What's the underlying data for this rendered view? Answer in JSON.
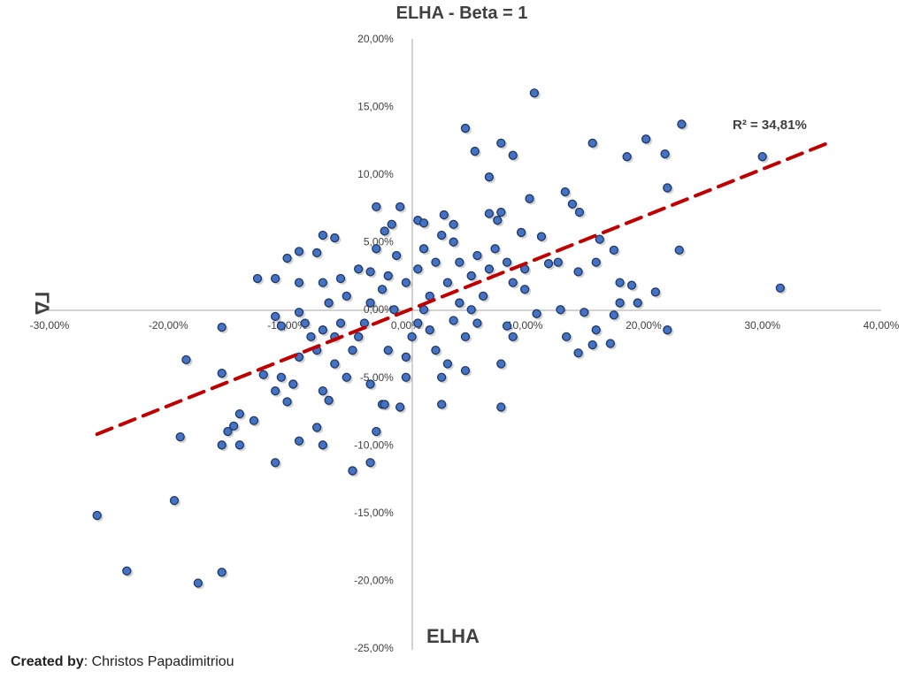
{
  "chart_data": {
    "type": "scatter",
    "title": "ELHA - Beta = 1",
    "xlabel": "ELHA",
    "ylabel": "ΓΔ",
    "xlim": [
      -0.3,
      0.4
    ],
    "ylim": [
      -0.25,
      0.2
    ],
    "x_ticks": [
      -0.3,
      -0.2,
      -0.1,
      0.0,
      0.1,
      0.2,
      0.3,
      0.4
    ],
    "x_tick_labels": [
      "-30,00%",
      "-20,00%",
      "-10,00%",
      "0,00%",
      "10,00%",
      "20,00%",
      "30,00%",
      "40,00%"
    ],
    "y_ticks": [
      0.2,
      0.15,
      0.1,
      0.05,
      0.0,
      -0.05,
      -0.1,
      -0.15,
      -0.2,
      -0.25
    ],
    "y_tick_labels": [
      "20,00%",
      "15,00%",
      "10,00%",
      "5,00%",
      "0,00%",
      "-5,00%",
      "-10,00%",
      "-15,00%",
      "-20,00%",
      "-25,00%"
    ],
    "grid": false,
    "point_color": "#4472C4",
    "point_edge_color": "#1F3864",
    "trendline": {
      "color": "#C00000",
      "style": "dashed",
      "x": [
        -0.26,
        0.355
      ],
      "y": [
        -0.092,
        0.123
      ]
    },
    "annotation": "R² = 34,81%",
    "points": [
      [
        0.108,
        0.16
      ],
      [
        0.232,
        0.137
      ],
      [
        0.05,
        0.134
      ],
      [
        0.202,
        0.126
      ],
      [
        0.157,
        0.123
      ],
      [
        0.08,
        0.123
      ],
      [
        0.218,
        0.115
      ],
      [
        0.058,
        0.117
      ],
      [
        0.09,
        0.114
      ],
      [
        0.186,
        0.113
      ],
      [
        0.3,
        0.113
      ],
      [
        0.07,
        0.098
      ],
      [
        0.22,
        0.09
      ],
      [
        0.134,
        0.087
      ],
      [
        0.104,
        0.082
      ],
      [
        0.14,
        0.078
      ],
      [
        -0.005,
        0.076
      ],
      [
        -0.025,
        0.076
      ],
      [
        0.146,
        0.072
      ],
      [
        0.08,
        0.072
      ],
      [
        0.032,
        0.07
      ],
      [
        0.07,
        0.071
      ],
      [
        0.077,
        0.066
      ],
      [
        0.01,
        0.066
      ],
      [
        0.015,
        0.064
      ],
      [
        0.04,
        0.063
      ],
      [
        -0.012,
        0.063
      ],
      [
        -0.018,
        0.058
      ],
      [
        0.097,
        0.057
      ],
      [
        0.114,
        0.054
      ],
      [
        -0.07,
        0.055
      ],
      [
        -0.06,
        0.053
      ],
      [
        0.163,
        0.052
      ],
      [
        0.23,
        0.044
      ],
      [
        0.175,
        0.044
      ],
      [
        -0.1,
        0.038
      ],
      [
        -0.09,
        0.043
      ],
      [
        -0.075,
        0.042
      ],
      [
        -0.125,
        0.023
      ],
      [
        -0.11,
        0.023
      ],
      [
        -0.09,
        0.02
      ],
      [
        -0.07,
        0.02
      ],
      [
        -0.055,
        0.023
      ],
      [
        -0.03,
        0.028
      ],
      [
        0.12,
        0.034
      ],
      [
        0.128,
        0.035
      ],
      [
        0.16,
        0.035
      ],
      [
        0.145,
        0.028
      ],
      [
        0.18,
        0.02
      ],
      [
        0.19,
        0.018
      ],
      [
        0.21,
        0.013
      ],
      [
        0.315,
        0.016
      ],
      [
        0.195,
        0.005
      ],
      [
        0.18,
        0.005
      ],
      [
        0.13,
        0.0
      ],
      [
        0.11,
        -0.003
      ],
      [
        0.15,
        -0.002
      ],
      [
        0.175,
        -0.004
      ],
      [
        -0.11,
        -0.005
      ],
      [
        -0.09,
        -0.002
      ],
      [
        -0.105,
        -0.012
      ],
      [
        -0.085,
        -0.01
      ],
      [
        -0.07,
        -0.015
      ],
      [
        -0.04,
        -0.02
      ],
      [
        0.01,
        -0.01
      ],
      [
        0.04,
        -0.008
      ],
      [
        0.06,
        -0.01
      ],
      [
        0.085,
        -0.012
      ],
      [
        0.09,
        -0.02
      ],
      [
        0.16,
        -0.015
      ],
      [
        0.135,
        -0.02
      ],
      [
        0.145,
        -0.032
      ],
      [
        0.157,
        -0.026
      ],
      [
        0.172,
        -0.025
      ],
      [
        0.22,
        -0.015
      ],
      [
        -0.155,
        -0.013
      ],
      [
        -0.185,
        -0.037
      ],
      [
        -0.155,
        -0.047
      ],
      [
        -0.12,
        -0.048
      ],
      [
        -0.105,
        -0.05
      ],
      [
        -0.09,
        -0.035
      ],
      [
        -0.075,
        -0.03
      ],
      [
        -0.06,
        -0.04
      ],
      [
        -0.05,
        -0.05
      ],
      [
        -0.03,
        -0.055
      ],
      [
        0.0,
        -0.05
      ],
      [
        0.03,
        -0.05
      ],
      [
        0.05,
        -0.045
      ],
      [
        0.08,
        -0.04
      ],
      [
        -0.095,
        -0.055
      ],
      [
        -0.07,
        -0.06
      ],
      [
        -0.065,
        -0.067
      ],
      [
        -0.02,
        -0.07
      ],
      [
        -0.005,
        -0.072
      ],
      [
        0.03,
        -0.07
      ],
      [
        0.08,
        -0.072
      ],
      [
        -0.11,
        -0.06
      ],
      [
        -0.1,
        -0.068
      ],
      [
        -0.14,
        -0.077
      ],
      [
        -0.145,
        -0.086
      ],
      [
        -0.15,
        -0.09
      ],
      [
        -0.128,
        -0.082
      ],
      [
        -0.19,
        -0.094
      ],
      [
        -0.155,
        -0.1
      ],
      [
        -0.14,
        -0.1
      ],
      [
        -0.11,
        -0.113
      ],
      [
        -0.09,
        -0.097
      ],
      [
        -0.07,
        -0.1
      ],
      [
        -0.075,
        -0.087
      ],
      [
        -0.045,
        -0.119
      ],
      [
        -0.03,
        -0.113
      ],
      [
        -0.025,
        -0.09
      ],
      [
        -0.018,
        -0.07
      ],
      [
        -0.26,
        -0.152
      ],
      [
        -0.195,
        -0.141
      ],
      [
        -0.235,
        -0.193
      ],
      [
        -0.175,
        -0.202
      ],
      [
        -0.155,
        -0.194
      ],
      [
        0.0,
        0.02
      ],
      [
        0.01,
        0.03
      ],
      [
        0.02,
        0.01
      ],
      [
        -0.01,
        0.0
      ],
      [
        0.005,
        -0.02
      ],
      [
        -0.02,
        0.015
      ],
      [
        0.025,
        0.035
      ],
      [
        0.035,
        0.02
      ],
      [
        0.045,
        0.005
      ],
      [
        0.055,
        0.025
      ],
      [
        -0.03,
        0.005
      ],
      [
        -0.04,
        0.03
      ],
      [
        0.06,
        0.04
      ],
      [
        0.07,
        0.03
      ],
      [
        0.015,
        0.045
      ],
      [
        -0.015,
        -0.03
      ],
      [
        -0.05,
        0.01
      ],
      [
        0.05,
        -0.02
      ],
      [
        -0.035,
        -0.01
      ],
      [
        0.025,
        -0.03
      ],
      [
        0.065,
        0.01
      ],
      [
        -0.06,
        -0.02
      ],
      [
        0.09,
        0.02
      ],
      [
        0.1,
        0.03
      ],
      [
        -0.025,
        0.045
      ],
      [
        0.04,
        0.05
      ],
      [
        0.0,
        -0.035
      ],
      [
        -0.045,
        -0.03
      ],
      [
        0.015,
        0.0
      ],
      [
        0.03,
        0.055
      ],
      [
        -0.008,
        0.04
      ],
      [
        0.075,
        0.045
      ],
      [
        -0.065,
        0.005
      ],
      [
        0.045,
        0.035
      ],
      [
        -0.08,
        -0.02
      ],
      [
        0.02,
        -0.015
      ],
      [
        0.085,
        0.035
      ],
      [
        -0.015,
        0.025
      ],
      [
        0.055,
        0.0
      ],
      [
        0.035,
        -0.04
      ],
      [
        -0.055,
        -0.01
      ],
      [
        0.1,
        0.015
      ]
    ]
  },
  "credit": {
    "prefix": "Created by",
    "name": ": Christos Papadimitriou"
  }
}
